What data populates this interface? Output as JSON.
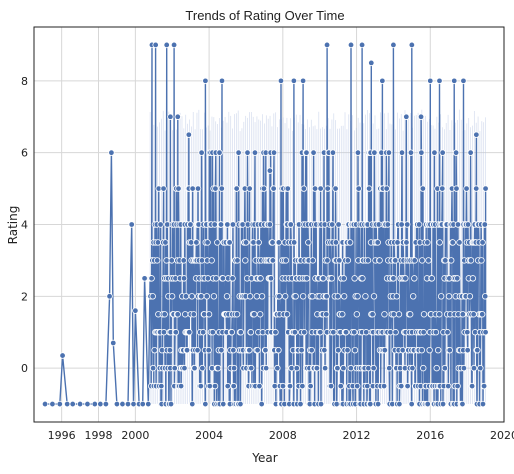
{
  "chart_data": {
    "type": "line",
    "title": "Trends of Rating Over Time",
    "xlabel": "Year",
    "ylabel": "Rating",
    "xlim": [
      1994.5,
      2020
    ],
    "ylim": [
      -1.5,
      9.5
    ],
    "xticks": [
      "1996",
      "1998",
      "2000",
      "2004",
      "2008",
      "2012",
      "2016",
      "2020"
    ],
    "xtick_values": [
      1996,
      1998,
      2000,
      2004,
      2008,
      2012,
      2016,
      2020
    ],
    "yticks": [
      "0",
      "2",
      "4",
      "6",
      "8"
    ],
    "ytick_values": [
      0,
      2,
      4,
      6,
      8
    ],
    "grid": true,
    "series": [
      {
        "color": "#4c72b0",
        "sparse_points": [
          [
            1995.1,
            -1
          ],
          [
            1995.5,
            -1
          ],
          [
            1995.9,
            -1
          ],
          [
            1996.05,
            0.35
          ],
          [
            1996.3,
            -1
          ],
          [
            1996.6,
            -1
          ],
          [
            1997.0,
            -1
          ],
          [
            1997.4,
            -1
          ],
          [
            1997.8,
            -1
          ],
          [
            1998.1,
            -1
          ],
          [
            1998.4,
            -1
          ],
          [
            1998.6,
            2
          ],
          [
            1998.7,
            6
          ],
          [
            1998.8,
            0.7
          ],
          [
            1999.0,
            -1
          ],
          [
            1999.3,
            -1
          ],
          [
            1999.6,
            -1
          ],
          [
            1999.8,
            4
          ],
          [
            1999.9,
            -1
          ],
          [
            2000.0,
            1.6
          ],
          [
            2000.2,
            -1
          ],
          [
            2000.4,
            -1
          ],
          [
            2000.5,
            2.5
          ],
          [
            2000.7,
            -1
          ]
        ],
        "dense_range": [
          2000.8,
          2019.0
        ],
        "dense_peaks": [
          [
            2000.9,
            9
          ],
          [
            2001.1,
            9
          ],
          [
            2001.7,
            9
          ],
          [
            2002.1,
            9
          ],
          [
            2001.9,
            7
          ],
          [
            2002.3,
            7
          ],
          [
            2002.9,
            6.5
          ],
          [
            2003.4,
            5
          ],
          [
            2003.8,
            8
          ],
          [
            2004.7,
            8
          ],
          [
            2005.6,
            6
          ],
          [
            2006.2,
            5
          ],
          [
            2007.3,
            5.5
          ],
          [
            2007.9,
            8
          ],
          [
            2008.6,
            8
          ],
          [
            2009.1,
            8
          ],
          [
            2010.4,
            9
          ],
          [
            2011.7,
            9
          ],
          [
            2012.3,
            9
          ],
          [
            2012.8,
            8.5
          ],
          [
            2013.4,
            8
          ],
          [
            2014.0,
            9
          ],
          [
            2014.7,
            7
          ],
          [
            2015.0,
            9
          ],
          [
            2015.5,
            7
          ],
          [
            2016.0,
            8
          ],
          [
            2016.5,
            8
          ],
          [
            2017.3,
            8
          ],
          [
            2017.8,
            8
          ],
          [
            2018.5,
            6.5
          ],
          [
            2019.0,
            5
          ]
        ]
      }
    ]
  }
}
